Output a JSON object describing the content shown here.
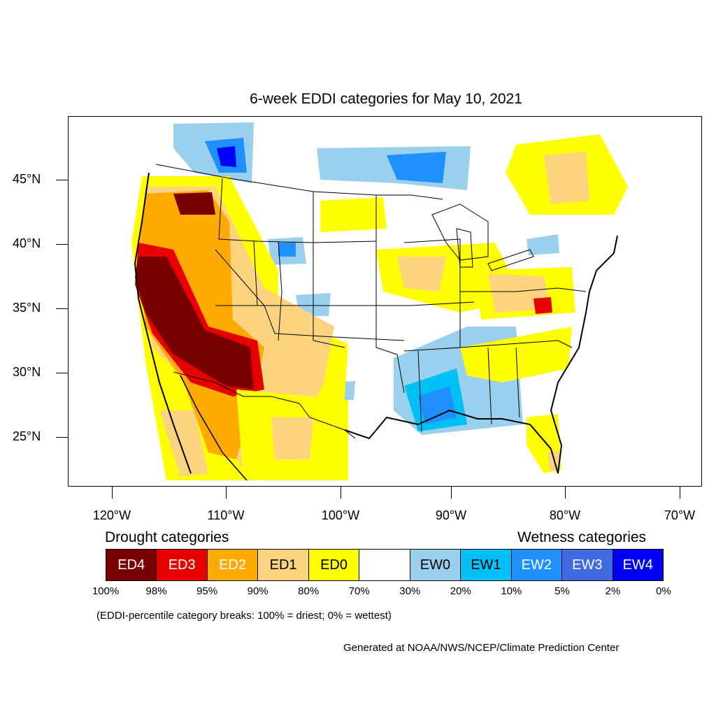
{
  "title": "6-week EDDI categories for May 10, 2021",
  "map": {
    "lat_labels": [
      "45°N",
      "40°N",
      "35°N",
      "30°N",
      "25°N"
    ],
    "lon_labels": [
      "120°W",
      "110°W",
      "100°W",
      "90°W",
      "80°W",
      "70°W"
    ],
    "colors": {
      "ED4": "#7a0000",
      "ED3": "#e60000",
      "ED2": "#ffaa00",
      "ED1": "#fcd37f",
      "ED0": "#ffff00",
      "EW0": "#9bcfee",
      "EW1": "#00c0f5",
      "EW2": "#1e90ff",
      "EW3": "#4169e1",
      "EW4": "#0000f5"
    }
  },
  "legend": {
    "drought_heading": "Drought categories",
    "wetness_heading": "Wetness categories",
    "categories": [
      {
        "label": "ED4",
        "color": "#7a0000",
        "text_color": "#ffffff"
      },
      {
        "label": "ED3",
        "color": "#e60000",
        "text_color": "#ffffff"
      },
      {
        "label": "ED2",
        "color": "#ffaa00",
        "text_color": "#ffffff"
      },
      {
        "label": "ED1",
        "color": "#fcd37f",
        "text_color": "#000000"
      },
      {
        "label": "ED0",
        "color": "#ffff00",
        "text_color": "#000000"
      },
      {
        "label": "",
        "color": "#ffffff",
        "text_color": "#000000"
      },
      {
        "label": "EW0",
        "color": "#9bcfee",
        "text_color": "#000000"
      },
      {
        "label": "EW1",
        "color": "#00c0f5",
        "text_color": "#000000"
      },
      {
        "label": "EW2",
        "color": "#1e90ff",
        "text_color": "#ffffff"
      },
      {
        "label": "EW3",
        "color": "#4169e1",
        "text_color": "#ffffff"
      },
      {
        "label": "EW4",
        "color": "#0000f5",
        "text_color": "#ffffff"
      }
    ],
    "percent_labels": [
      "100%",
      "98%",
      "95%",
      "90%",
      "80%",
      "70%",
      "30%",
      "20%",
      "10%",
      "5%",
      "2%",
      "0%"
    ]
  },
  "note": "(EDDI-percentile category breaks: 100% = driest; 0% = wettest)",
  "credit": "Generated at NOAA/NWS/NCEP/Climate Prediction Center"
}
